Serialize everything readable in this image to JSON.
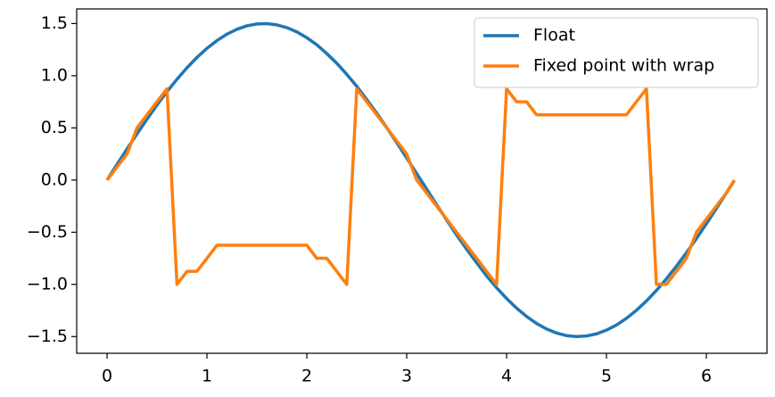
{
  "chart_data": {
    "type": "line",
    "x": [
      0,
      0.1,
      0.2,
      0.3,
      0.4,
      0.5,
      0.6,
      0.7,
      0.8,
      0.9,
      1.0,
      1.1,
      1.2,
      1.3,
      1.4,
      1.5,
      1.6,
      1.7,
      1.8,
      1.9,
      2.0,
      2.1,
      2.2,
      2.3,
      2.4,
      2.5,
      2.6,
      2.7,
      2.8,
      2.9,
      3.0,
      3.1,
      3.2,
      3.3,
      3.4,
      3.5,
      3.6,
      3.7,
      3.8,
      3.9,
      4.0,
      4.1,
      4.2,
      4.3,
      4.4,
      4.5,
      4.6,
      4.7,
      4.8,
      4.9,
      5.0,
      5.1,
      5.2,
      5.3,
      5.4,
      5.5,
      5.6,
      5.7,
      5.8,
      5.9,
      6.0,
      6.1,
      6.2,
      6.28
    ],
    "series": [
      {
        "name": "Float",
        "color": "#1f77b4",
        "values": [
          0,
          0.15,
          0.298,
          0.443,
          0.584,
          0.719,
          0.847,
          0.966,
          1.076,
          1.175,
          1.262,
          1.337,
          1.398,
          1.445,
          1.478,
          1.496,
          1.499,
          1.487,
          1.461,
          1.42,
          1.364,
          1.296,
          1.212,
          1.119,
          1.013,
          0.898,
          0.772,
          0.641,
          0.502,
          0.359,
          0.212,
          0.062,
          -0.087,
          -0.237,
          -0.383,
          -0.526,
          -0.663,
          -0.792,
          -0.918,
          -1.032,
          -1.135,
          -1.227,
          -1.307,
          -1.374,
          -1.427,
          -1.466,
          -1.491,
          -1.5,
          -1.494,
          -1.474,
          -1.438,
          -1.389,
          -1.325,
          -1.248,
          -1.159,
          -1.058,
          -0.947,
          -0.826,
          -0.697,
          -0.561,
          -0.419,
          -0.273,
          -0.125,
          -0.005
        ]
      },
      {
        "name": "Fixed point with wrap",
        "color": "#ff7f0e",
        "values": [
          0,
          0.125,
          0.25,
          0.5,
          0.625,
          0.75,
          0.875,
          -1,
          -0.875,
          -0.875,
          -0.75,
          -0.625,
          -0.625,
          -0.625,
          -0.625,
          -0.625,
          -0.625,
          -0.625,
          -0.625,
          -0.625,
          -0.625,
          -0.75,
          -0.75,
          -0.875,
          -1,
          0.875,
          0.75,
          0.625,
          0.5,
          0.375,
          0.25,
          0,
          -0.125,
          -0.25,
          -0.375,
          -0.5,
          -0.625,
          -0.75,
          -0.875,
          -1,
          0.875,
          0.75,
          0.75,
          0.625,
          0.625,
          0.625,
          0.625,
          0.625,
          0.625,
          0.625,
          0.625,
          0.625,
          0.625,
          0.75,
          0.875,
          -1,
          -1,
          -0.875,
          -0.75,
          -0.5,
          -0.375,
          -0.25,
          -0.125,
          0
        ]
      }
    ],
    "xlim": [
      -0.304,
      6.607
    ],
    "ylim": [
      -1.66,
      1.64
    ],
    "xticks": [
      0,
      1,
      2,
      3,
      4,
      5,
      6
    ],
    "yticks": [
      {
        "value": -1.5,
        "label": "−1.5"
      },
      {
        "value": -1.0,
        "label": "−1.0"
      },
      {
        "value": -0.5,
        "label": "−0.5"
      },
      {
        "value": 0,
        "label": "0.0"
      },
      0.5,
      {
        "value": 1.0,
        "label": "1.0"
      },
      1.5
    ],
    "grid": false,
    "legend": "upper right"
  }
}
